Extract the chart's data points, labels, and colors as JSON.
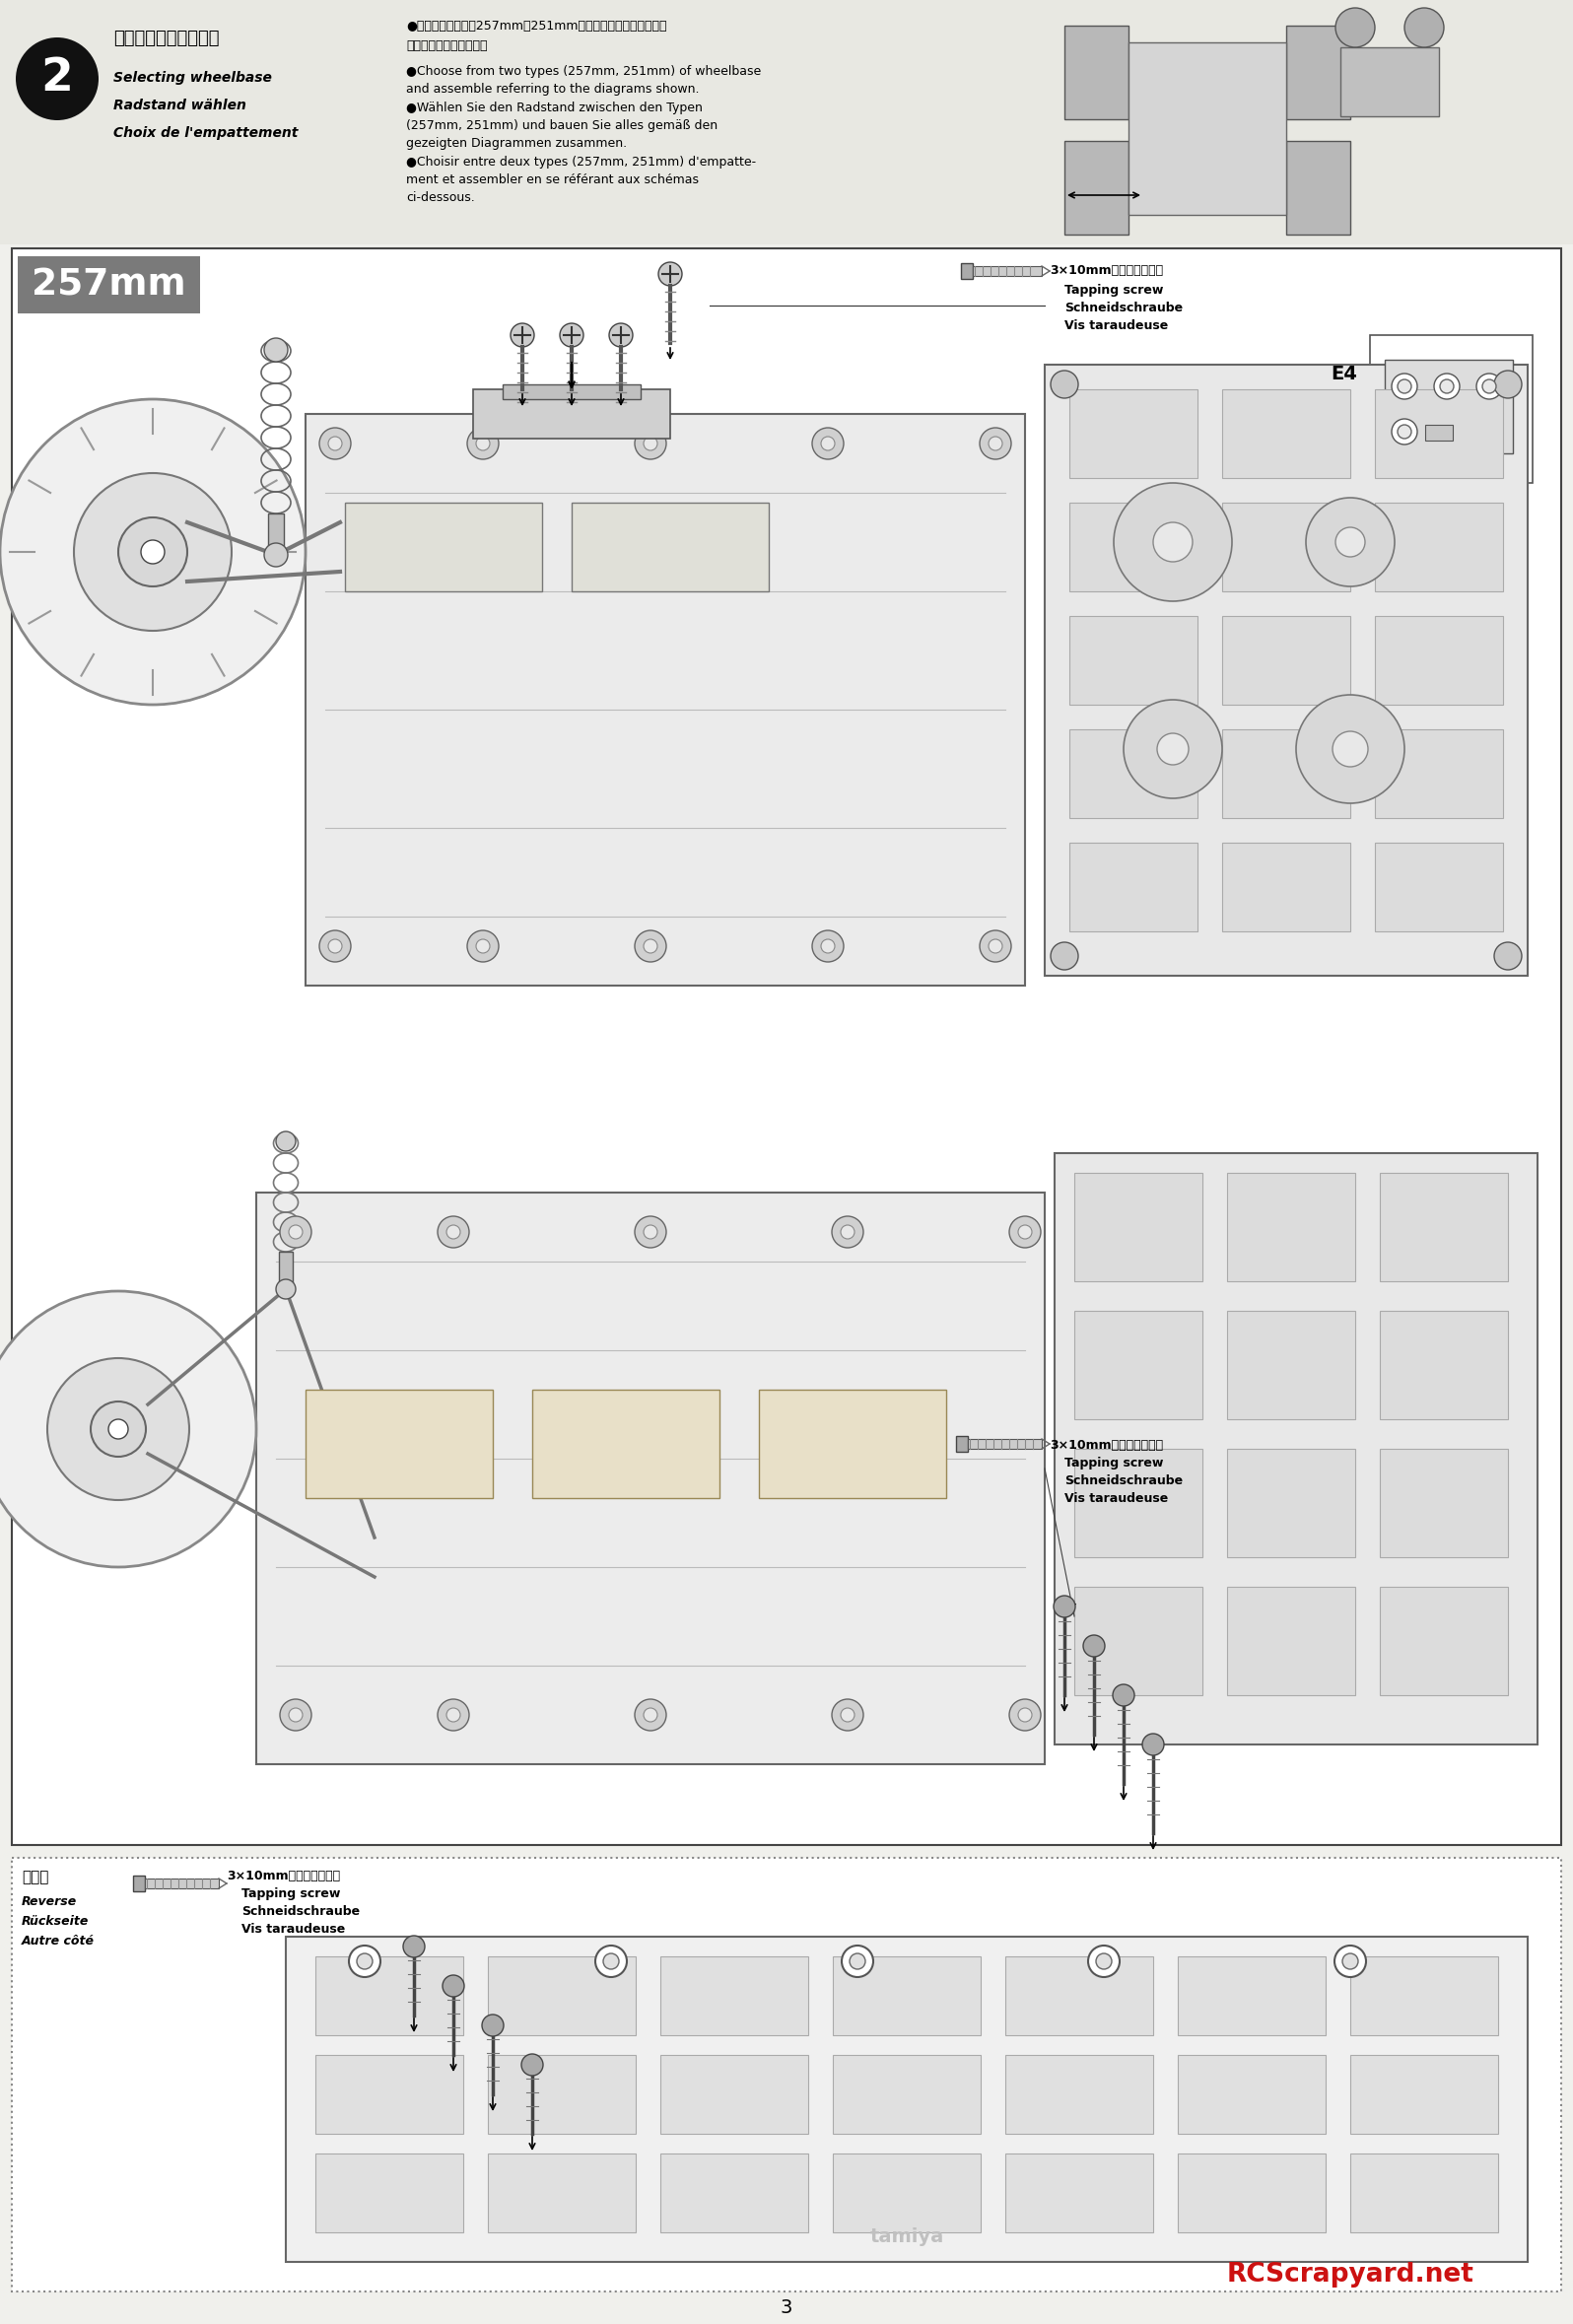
{
  "page_bg": "#f0f0ec",
  "page_num": "3",
  "step_number": "2",
  "step_title_jp": "ホイールベースの選択",
  "step_title_en": "Selecting wheelbase",
  "step_title_de": "Radstand wählen",
  "step_title_fr": "Choix de l'empattement",
  "instr_jp1": "●ホイールベースを257mm、251mmの中から選び、各図を参考",
  "instr_jp2": "に組み立ててください。",
  "instr_en1": "●Choose from two types (257mm, 251mm) of wheelbase",
  "instr_en2": "and assemble referring to the diagrams shown.",
  "instr_de1": "●Wählen Sie den Radstand zwischen den Typen",
  "instr_de2": "(257mm, 251mm) und bauen Sie alles gemäß den",
  "instr_de3": "gezeigten Diagrammen zusammen.",
  "instr_fr1": "●Choisir entre deux types (257mm, 251mm) d'empatte-",
  "instr_fr2": "ment et assembler en se référant aux schémas",
  "instr_fr3": "ci-dessous.",
  "label_257mm": "257mm",
  "label_257mm_bg": "#7a7a7a",
  "label_257mm_fg": "#ffffff",
  "screw_label1_l1": "3×10mmタッピングビス",
  "screw_label1_l2": "Tapping screw",
  "screw_label1_l3": "Schneidschraube",
  "screw_label1_l4": "Vis taraudeuse",
  "e4_label": "E4",
  "screw_label2_l1": "3×10mmタッピングビス",
  "screw_label2_l2": "Tapping screw",
  "screw_label2_l3": "Schneidschraube",
  "screw_label2_l4": "Vis taraudeuse",
  "reverse_jp": "《裏》",
  "reverse_en": "Reverse",
  "reverse_de": "Rückseite",
  "reverse_fr": "Autre côté",
  "screw_label3_l1": "3×10mmタッピングビス",
  "screw_label3_l2": "Tapping screw",
  "screw_label3_l3": "Schneidschraube",
  "screw_label3_l4": "Vis taraudeuse",
  "watermark": "RCScrapyard.net",
  "watermark_color": "#cc1111",
  "header_bg": "#e8e8e2",
  "box_edge": "#444444",
  "dot_edge": "#888888",
  "white": "#ffffff",
  "black": "#111111",
  "circle_bg": "#111111",
  "gray_mid": "#aaaaaa",
  "gray_light": "#cccccc",
  "gray_dark": "#555555"
}
